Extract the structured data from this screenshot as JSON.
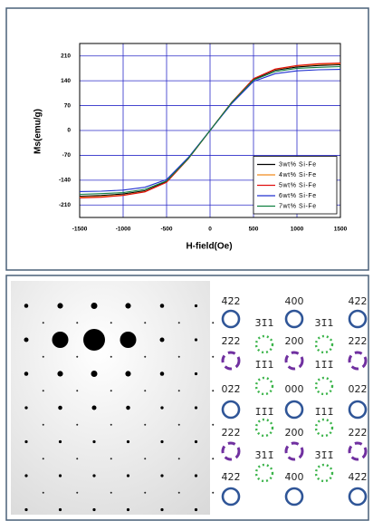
{
  "chart_data": {
    "type": "line",
    "x_label": "H-field(Oe)",
    "y_label": "Ms(emu/g)",
    "x": [
      -1500,
      -1250,
      -1000,
      -750,
      -500,
      -250,
      0,
      250,
      500,
      750,
      1000,
      1250,
      1500
    ],
    "xlim": [
      -1500,
      1500
    ],
    "xticks": [
      -1500,
      -1000,
      -500,
      0,
      500,
      1000,
      1500
    ],
    "ylim": [
      -245,
      245
    ],
    "yticks": [
      -210,
      -140,
      -70,
      0,
      70,
      140,
      210
    ],
    "grid": true,
    "grid_color": "#2b2bc8",
    "legend": "lower right",
    "series": [
      {
        "name": "3wt% Si-Fe",
        "color": "#000000",
        "values": [
          -185,
          -183,
          -179,
          -170,
          -144,
          -78,
          0,
          78,
          144,
          170,
          179,
          183,
          185
        ]
      },
      {
        "name": "4wt% Si-Fe",
        "color": "#f08c1e",
        "values": [
          -188,
          -186,
          -182,
          -172,
          -146,
          -80,
          0,
          80,
          146,
          172,
          182,
          186,
          188
        ]
      },
      {
        "name": "5wt% Si-Fe",
        "color": "#e01010",
        "values": [
          -190,
          -188,
          -183,
          -173,
          -146,
          -80,
          0,
          80,
          146,
          173,
          183,
          188,
          190
        ]
      },
      {
        "name": "6wt% Si-Fe",
        "color": "#2030d0",
        "values": [
          -172,
          -171,
          -168,
          -160,
          -138,
          -76,
          0,
          76,
          138,
          160,
          168,
          171,
          172
        ]
      },
      {
        "name": "7wt% Si-Fe",
        "color": "#108040",
        "values": [
          -180,
          -178,
          -175,
          -166,
          -142,
          -79,
          0,
          79,
          142,
          166,
          175,
          178,
          180
        ]
      }
    ]
  },
  "pattern_index": {
    "columns": [
      [
        "4̄2̄2",
        "2̄2̄2",
        "02̄2̄",
        "2̄22̄",
        "4̄22̄"
      ],
      [
        "3̄1̄1",
        "1̄1̄1",
        "1̄1̄1̄",
        "3̄11̄"
      ],
      [
        "400",
        "200",
        "000",
        "2̄00",
        "4̄00"
      ],
      [
        "31̄1",
        "11̄1̄",
        "1̄11̄",
        "3̄1̄1̄"
      ],
      [
        "42̄2",
        "22̄2",
        "022̄",
        "22̄2̄",
        "42̄2̄"
      ]
    ]
  }
}
